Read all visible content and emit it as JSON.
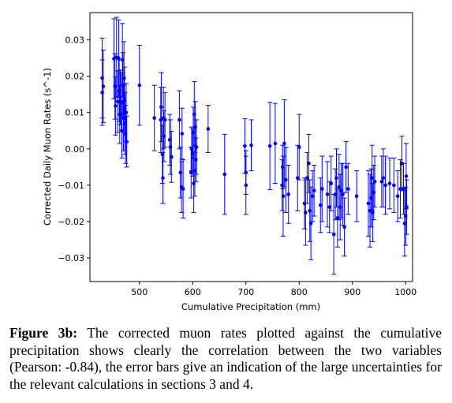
{
  "chart_data": {
    "type": "scatter",
    "xlabel": "Cumulative Precipitation (mm)",
    "ylabel": "Corrected Daily Muon Rates (s^-1)",
    "xlim": [
      407,
      1013
    ],
    "ylim": [
      -0.0365,
      0.0375
    ],
    "xticks": [
      500,
      600,
      700,
      800,
      900,
      1000
    ],
    "yticks": [
      -0.03,
      -0.02,
      -0.01,
      0.0,
      0.01,
      0.02,
      0.03
    ],
    "ytick_labels": [
      "−0.03",
      "−0.02",
      "−0.01",
      "0.00",
      "0.01",
      "0.02",
      "0.03"
    ],
    "grid": false,
    "marker_color": "#0000ff",
    "series": [
      {
        "points": [
          [
            430,
            0.0195,
            0.011
          ],
          [
            430,
            0.0155,
            0.009
          ],
          [
            432,
            0.0172,
            0.01
          ],
          [
            452,
            0.0248,
            0.011
          ],
          [
            454,
            0.0172,
            0.009
          ],
          [
            455,
            0.0118,
            0.008
          ],
          [
            457,
            0.0252,
            0.011
          ],
          [
            459,
            0.013,
            0.0085
          ],
          [
            461,
            0.025,
            0.0105
          ],
          [
            462,
            0.016,
            0.0085
          ],
          [
            463,
            0.0095,
            0.008
          ],
          [
            464,
            0.0142,
            0.0075
          ],
          [
            466,
            0.013,
            0.008
          ],
          [
            467,
            0.005,
            0.0075
          ],
          [
            468,
            0.0245,
            0.01
          ],
          [
            469,
            0.0175,
            0.009
          ],
          [
            470,
            0.0085,
            0.009
          ],
          [
            471,
            0.0195,
            0.01
          ],
          [
            472,
            0.0135,
            0.009
          ],
          [
            473,
            0.007,
            0.0085
          ],
          [
            474,
            0.004,
            0.008
          ],
          [
            475,
            0.01,
            0.008
          ],
          [
            476,
            0.002,
            0.007
          ],
          [
            500,
            0.0175,
            0.011
          ],
          [
            528,
            0.0085,
            0.009
          ],
          [
            540,
            0.008,
            0.009
          ],
          [
            541,
            0.0115,
            0.0095
          ],
          [
            543,
            -0.0015,
            0.008
          ],
          [
            544,
            -0.008,
            0.007
          ],
          [
            545,
            0.0085,
            0.0085
          ],
          [
            546,
            0.0035,
            0.007
          ],
          [
            548,
            0.008,
            0.0075
          ],
          [
            557,
            0.0025,
            0.007
          ],
          [
            558,
            0.0005,
            0.0075
          ],
          [
            560,
            -0.0022,
            0.007
          ],
          [
            575,
            0.008,
            0.008
          ],
          [
            577,
            -0.0065,
            0.007
          ],
          [
            579,
            -0.0105,
            0.007
          ],
          [
            580,
            0.0042,
            0.007
          ],
          [
            582,
            -0.011,
            0.008
          ],
          [
            597,
            -0.0065,
            0.007
          ],
          [
            598,
            0.0,
            0.006
          ],
          [
            600,
            -0.001,
            0.0065
          ],
          [
            601,
            0.0045,
            0.007
          ],
          [
            602,
            -0.0095,
            0.008
          ],
          [
            603,
            0.0095,
            0.009
          ],
          [
            604,
            -0.006,
            0.007
          ],
          [
            605,
            0.006,
            0.007
          ],
          [
            606,
            -0.003,
            0.006
          ],
          [
            607,
            0.0005,
            0.0075
          ],
          [
            629,
            0.0055,
            0.0065
          ],
          [
            660,
            -0.007,
            0.011
          ],
          [
            698,
            0.0008,
            0.0075
          ],
          [
            700,
            -0.01,
            0.008
          ],
          [
            700,
            -0.0065,
            0.006
          ],
          [
            710,
            0.001,
            0.007
          ],
          [
            745,
            0.0008,
            0.012
          ],
          [
            755,
            0.0015,
            0.011
          ],
          [
            768,
            -0.01,
            0.007
          ],
          [
            769,
            -0.005,
            0.006
          ],
          [
            770,
            -0.013,
            0.011
          ],
          [
            772,
            0.0015,
            0.012
          ],
          [
            775,
            -0.0085,
            0.009
          ],
          [
            780,
            -0.0125,
            0.008
          ],
          [
            797,
            -0.008,
            0.009
          ],
          [
            800,
            0.0005,
            0.009
          ],
          [
            810,
            -0.015,
            0.007
          ],
          [
            812,
            -0.0175,
            0.009
          ],
          [
            815,
            -0.008,
            0.007
          ],
          [
            818,
            -0.004,
            0.008
          ],
          [
            820,
            -0.017,
            0.0085
          ],
          [
            822,
            -0.0205,
            0.01
          ],
          [
            825,
            -0.013,
            0.007
          ],
          [
            828,
            -0.0115,
            0.007
          ],
          [
            840,
            -0.0155,
            0.0075
          ],
          [
            843,
            -0.011,
            0.009
          ],
          [
            853,
            -0.0125,
            0.009
          ],
          [
            857,
            -0.016,
            0.007
          ],
          [
            860,
            -0.0095,
            0.0075
          ],
          [
            865,
            -0.0235,
            0.011
          ],
          [
            868,
            -0.0125,
            0.007
          ],
          [
            870,
            -0.008,
            0.008
          ],
          [
            872,
            -0.019,
            0.008
          ],
          [
            875,
            -0.0105,
            0.009
          ],
          [
            877,
            -0.016,
            0.009
          ],
          [
            879,
            -0.0115,
            0.0075
          ],
          [
            882,
            -0.0125,
            0.0085
          ],
          [
            885,
            -0.0215,
            0.008
          ],
          [
            888,
            -0.005,
            0.007
          ],
          [
            892,
            -0.011,
            0.007
          ],
          [
            908,
            -0.013,
            0.007
          ],
          [
            930,
            -0.015,
            0.009
          ],
          [
            933,
            -0.017,
            0.01
          ],
          [
            935,
            -0.0135,
            0.008
          ],
          [
            937,
            -0.008,
            0.009
          ],
          [
            938,
            -0.0175,
            0.008
          ],
          [
            940,
            -0.012,
            0.0075
          ],
          [
            942,
            -0.009,
            0.007
          ],
          [
            955,
            -0.009,
            0.007
          ],
          [
            958,
            -0.008,
            0.008
          ],
          [
            962,
            -0.01,
            0.008
          ],
          [
            970,
            -0.0095,
            0.007
          ],
          [
            978,
            -0.01,
            0.0075
          ],
          [
            985,
            -0.013,
            0.007
          ],
          [
            990,
            -0.011,
            0.008
          ],
          [
            993,
            -0.004,
            0.0075
          ],
          [
            996,
            -0.011,
            0.007
          ],
          [
            998,
            -0.0205,
            0.009
          ],
          [
            1000,
            -0.0185,
            0.008
          ],
          [
            1001,
            -0.0075,
            0.009
          ],
          [
            1002,
            -0.016,
            0.0075
          ]
        ]
      }
    ]
  },
  "caption": {
    "label": "Figure 3b:",
    "text": " The corrected muon rates plotted against the cumulative precipitation shows clearly the correlation between the two variables (Pearson: -0.84), the error bars give an indication of the large uncertainties for the relevant calculations in sections 3 and 4."
  }
}
